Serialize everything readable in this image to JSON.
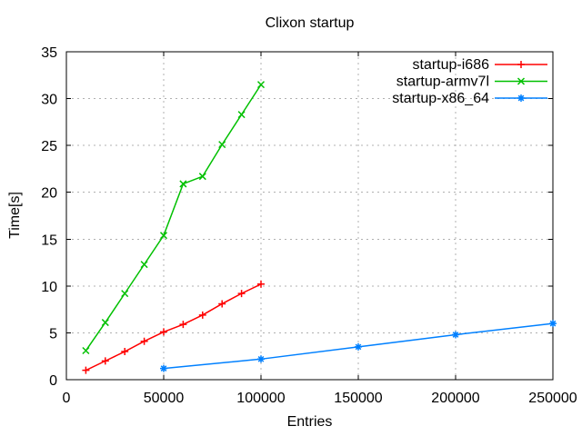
{
  "window": {
    "background": "#ffffff"
  },
  "chart_data": {
    "type": "line",
    "title": "Clixon startup",
    "xlabel": "Entries",
    "ylabel": "Time[s]",
    "xlim": [
      0,
      250000
    ],
    "ylim": [
      0,
      35
    ],
    "xticks": [
      0,
      50000,
      100000,
      150000,
      200000,
      250000
    ],
    "yticks": [
      0,
      5,
      10,
      15,
      20,
      25,
      30,
      35
    ],
    "grid": true,
    "legend_position": "top-right-inside",
    "colors": {
      "grid": "#b0b0b0",
      "border": "#000000",
      "text": "#000000",
      "background": "#ffffff"
    },
    "series": [
      {
        "name": "startup-i686",
        "color": "#ff0000",
        "marker": "plus",
        "x": [
          10000,
          20000,
          30000,
          40000,
          50000,
          60000,
          70000,
          80000,
          90000,
          100000
        ],
        "y": [
          1.0,
          2.0,
          3.0,
          4.1,
          5.1,
          5.9,
          6.9,
          8.1,
          9.2,
          10.2
        ]
      },
      {
        "name": "startup-armv7l",
        "color": "#00c000",
        "marker": "cross",
        "x": [
          10000,
          20000,
          30000,
          40000,
          50000,
          60000,
          70000,
          80000,
          90000,
          100000
        ],
        "y": [
          3.1,
          6.1,
          9.2,
          12.3,
          15.4,
          20.9,
          21.7,
          25.1,
          28.3,
          31.5
        ]
      },
      {
        "name": "startup-x86_64",
        "color": "#0080ff",
        "marker": "asterisk",
        "x": [
          50000,
          100000,
          150000,
          200000,
          250000
        ],
        "y": [
          1.2,
          2.2,
          3.5,
          4.8,
          6.0
        ]
      }
    ]
  }
}
